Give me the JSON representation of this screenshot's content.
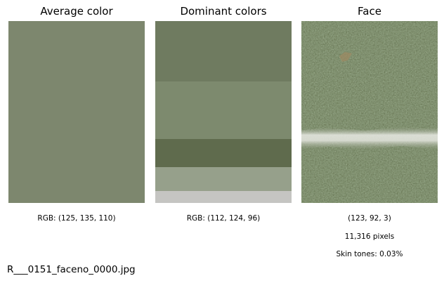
{
  "panels": {
    "average": {
      "title": "Average color",
      "color": "#7d876e",
      "caption": "RGB: (125, 135, 110)"
    },
    "dominant": {
      "title": "Dominant colors",
      "colors": [
        "#6f7b60",
        "#7d8a6e",
        "#5f6b4d",
        "#96a08b",
        "#c5c5c2"
      ],
      "caption": "RGB: (112, 124, 96)"
    },
    "face": {
      "title": "Face",
      "caption_rgb": "(123, 92, 3)",
      "caption_pixels": "11,316 pixels",
      "caption_skin": "Skin tones: 0.03%"
    }
  },
  "filename": "R___0151_faceno_0000.jpg"
}
